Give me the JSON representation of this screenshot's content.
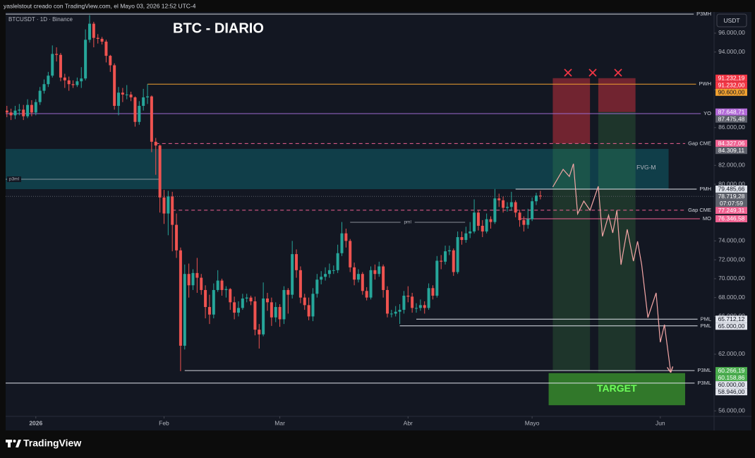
{
  "chart_data": {
    "type": "candlestick",
    "caption": "yaslelstout creado con TradingView.com, el Mayo 03, 2026 12:52 UTC-4",
    "symbol": "BTCUSDT · 1D · Binance",
    "title": "BTC - DIARIO",
    "currency": "USDT",
    "brand": "TradingView",
    "up_color": "#26a69a",
    "down_color": "#ef5350",
    "open": [
      87800,
      87600,
      87300,
      87800,
      87900,
      87200,
      88400,
      87600,
      88700,
      89900,
      90600,
      91500,
      93800,
      93700,
      91300,
      91000,
      90600,
      90500,
      90900,
      91200,
      95300,
      97000,
      95500,
      95400,
      95100,
      93600,
      92600,
      88300,
      89700,
      89500,
      89500,
      89200,
      86600,
      88300,
      89200,
      89300,
      84500,
      84100,
      78600,
      76900,
      78700,
      75700,
      73000,
      62900,
      70500,
      69300,
      70600,
      70100,
      68800,
      67000,
      66200,
      68800,
      69800,
      68800,
      68900,
      67500,
      66400,
      66900,
      67900,
      68000,
      67600,
      64600,
      64100,
      67900,
      67500,
      65900,
      67000,
      65700,
      68800,
      68300,
      72600,
      70900,
      68000,
      67200,
      66000,
      68400,
      69900,
      70200,
      70500,
      70900,
      70900,
      72700,
      74800,
      74000,
      71200,
      69900,
      70500,
      68700,
      68000,
      70900,
      70500,
      71300,
      68800,
      66300,
      66300,
      66500,
      66700,
      68200,
      68100,
      66900,
      66900,
      67200,
      66900,
      69000,
      68200,
      71900,
      71800,
      72900,
      73000,
      70700,
      74400,
      74100,
      74800,
      75000,
      77000,
      75600,
      75000,
      76300,
      76000,
      78500,
      78300,
      77500,
      77600,
      78100,
      77000,
      76200,
      75700,
      76300,
      78200,
      78800
    ],
    "high": [
      88300,
      88000,
      88300,
      88500,
      88400,
      89000,
      88900,
      89000,
      90300,
      91100,
      91900,
      94700,
      94500,
      93900,
      91700,
      91400,
      91000,
      91300,
      92400,
      96400,
      97900,
      97200,
      95900,
      95600,
      95300,
      93700,
      92800,
      90300,
      90200,
      90500,
      89800,
      89300,
      88800,
      90100,
      90600,
      89400,
      84900,
      84200,
      79400,
      79300,
      79200,
      76900,
      73300,
      71500,
      71600,
      71000,
      72200,
      70500,
      69300,
      68300,
      69500,
      70900,
      70000,
      69200,
      69000,
      68100,
      67600,
      68400,
      68400,
      68200,
      68100,
      65200,
      69600,
      68500,
      68000,
      67500,
      67300,
      69200,
      69000,
      74000,
      73100,
      71300,
      68400,
      68000,
      69000,
      70500,
      70800,
      71200,
      71600,
      71400,
      73600,
      76000,
      75300,
      74200,
      71700,
      71000,
      70700,
      69100,
      71300,
      71500,
      71800,
      71500,
      69200,
      66700,
      67100,
      67300,
      68700,
      69200,
      68500,
      67400,
      67800,
      67600,
      69500,
      69300,
      72400,
      72500,
      73500,
      73500,
      73200,
      75000,
      75000,
      75500,
      76000,
      78400,
      77300,
      76200,
      76900,
      76600,
      79500,
      79000,
      78700,
      78100,
      79200,
      78300,
      77300,
      76600,
      77400,
      78600,
      79100,
      79300
    ],
    "low": [
      87100,
      86800,
      86900,
      87300,
      86800,
      87000,
      87200,
      87300,
      88400,
      89600,
      90300,
      91300,
      93000,
      90900,
      90200,
      89900,
      90200,
      90300,
      90200,
      91000,
      95000,
      94500,
      94900,
      94800,
      92900,
      91900,
      87900,
      87300,
      88700,
      89000,
      88800,
      86100,
      86300,
      87800,
      88500,
      83400,
      81000,
      77000,
      75800,
      74600,
      72900,
      72200,
      60200,
      62500,
      68000,
      68800,
      68500,
      68300,
      65800,
      65200,
      65800,
      68600,
      68200,
      68000,
      66700,
      65700,
      66000,
      66700,
      67500,
      67200,
      64000,
      62600,
      63900,
      66600,
      65000,
      65400,
      64900,
      65200,
      66300,
      67900,
      70100,
      67400,
      66700,
      65600,
      65500,
      68000,
      69400,
      69800,
      70100,
      70500,
      70600,
      72400,
      73300,
      70700,
      69300,
      69600,
      68300,
      67700,
      67800,
      69900,
      70200,
      68000,
      65900,
      65900,
      66000,
      65200,
      66300,
      67500,
      66400,
      66400,
      66600,
      66300,
      66700,
      67800,
      68000,
      71000,
      71500,
      72500,
      70300,
      70500,
      73600,
      73800,
      74300,
      74800,
      75100,
      74400,
      74800,
      75300,
      75800,
      77600,
      77000,
      77100,
      77200,
      76500,
      75500,
      75000,
      75300,
      76100,
      77800,
      78400
    ],
    "close": [
      87600,
      87300,
      87800,
      87900,
      87200,
      88400,
      87600,
      88700,
      89900,
      90600,
      91500,
      93800,
      93700,
      91300,
      91000,
      90600,
      90500,
      90900,
      91200,
      95300,
      97000,
      95500,
      95400,
      95100,
      93600,
      92600,
      88300,
      89700,
      89500,
      89500,
      89200,
      86600,
      88300,
      89200,
      89300,
      84500,
      84100,
      78600,
      76900,
      78700,
      75700,
      73000,
      62900,
      70500,
      69300,
      70600,
      70100,
      68800,
      67000,
      66200,
      68800,
      69800,
      68800,
      68900,
      67500,
      66400,
      66900,
      67900,
      68000,
      67600,
      64600,
      64100,
      67900,
      67500,
      65900,
      67000,
      65700,
      68800,
      68300,
      72600,
      70900,
      68000,
      67200,
      66000,
      68400,
      69900,
      70200,
      70500,
      70900,
      70900,
      72700,
      74800,
      74000,
      71200,
      69900,
      70500,
      68700,
      68000,
      70900,
      70500,
      71300,
      68800,
      66300,
      66300,
      66500,
      66700,
      68200,
      68100,
      66900,
      66900,
      67200,
      66900,
      69000,
      68200,
      71900,
      71800,
      72900,
      73000,
      70700,
      74400,
      74100,
      74800,
      75000,
      77000,
      75600,
      75000,
      76300,
      76000,
      78500,
      78300,
      77500,
      77600,
      78100,
      77000,
      76200,
      75700,
      76300,
      78200,
      78800,
      78719.28
    ],
    "xlim": [
      -0.3,
      171
    ],
    "xticks": [
      {
        "value": 7,
        "label": "2026"
      },
      {
        "value": 38,
        "label": "Feb"
      },
      {
        "value": 66,
        "label": "Mar"
      },
      {
        "value": 97,
        "label": "Abr"
      },
      {
        "value": 127,
        "label": "Mayo"
      },
      {
        "value": 158,
        "label": "Jun"
      }
    ],
    "ylim": [
      55420,
      98240
    ],
    "yticks": [
      {
        "value": 96000,
        "label": "96.000,00"
      },
      {
        "value": 94000,
        "label": "94.000,00"
      },
      {
        "value": 90000,
        "label": "90.000,00"
      },
      {
        "value": 86000,
        "label": "86.000,00"
      },
      {
        "value": 82000,
        "label": "82.000,00"
      },
      {
        "value": 80000,
        "label": "80.000,00"
      },
      {
        "value": 74000,
        "label": "74.000,00"
      },
      {
        "value": 72000,
        "label": "72.000,00"
      },
      {
        "value": 70000,
        "label": "70.000,00"
      },
      {
        "value": 68000,
        "label": "68.000,00"
      },
      {
        "value": 66000,
        "label": "66.000,00"
      },
      {
        "value": 62000,
        "label": "62.000,00"
      },
      {
        "value": 56000,
        "label": "56.000,00"
      }
    ],
    "grid": false,
    "current_price": {
      "value": 78719.28,
      "label": "78.719,28",
      "countdown": "07:07:59",
      "color": "#5d606b"
    },
    "fvg": {
      "label": "FVG-M",
      "top": 83740,
      "bottom": 79480,
      "end": 160,
      "color": "#0e6e7a"
    },
    "levels": [
      {
        "label": "P3MH",
        "value": 98020,
        "color": "#d1d4dc"
      },
      {
        "label": "PWH",
        "value": 90600,
        "value_label": "90.600,00",
        "start": 34,
        "color": "#f0a030"
      },
      {
        "label": "YO",
        "value": 87475.48,
        "value_label": "87.475,48",
        "color": "#9c6ad0",
        "tag_color": "#5d606b"
      },
      {
        "label": "Gap CME",
        "value": 84309.11,
        "value_label": "84.309,11",
        "start": 36,
        "dashed": true,
        "color": "#f06292",
        "tag_color": "#5d606b"
      },
      {
        "label": "PMH",
        "value": 79485.66,
        "value_label": "79.485,66",
        "start": 123,
        "color": "#e0e3eb"
      },
      {
        "label": "Gap CME",
        "value": 77249.31,
        "value_label": "77.249,31",
        "start": 40,
        "dashed": true,
        "color": "#f06292"
      },
      {
        "label": "MO",
        "value": 76346.58,
        "value_label": "76.346,58",
        "start": 124,
        "color": "#f06292"
      },
      {
        "label": "PML",
        "value": 65712.12,
        "value_label": "65.712,12",
        "start": 99,
        "color": "#e0e3eb"
      },
      {
        "label": "PML",
        "value": 65000,
        "value_label": "65.000,00",
        "start": 95,
        "color": "#e0e3eb"
      },
      {
        "label": "P3ML",
        "value": 60266.19,
        "start": 43,
        "color": "#d1d4dc"
      },
      {
        "label": "P3ML",
        "value": 58946,
        "value_label": "58.946,00",
        "color": "#e0e3eb"
      }
    ],
    "annotations": [
      {
        "label": "p3ml",
        "value": 80530,
        "end": 37
      },
      {
        "label": "pml",
        "value": 75970,
        "start": 83,
        "end": 110.8
      }
    ],
    "positions": [
      {
        "start": 132,
        "end": 141,
        "stop": 91232.19,
        "stop_label": "91.232,19",
        "entry": 84327.06,
        "entry_label": "84.327,06",
        "entry_color": "#f06292",
        "target": 60266.19,
        "target_label": "60.266,19"
      },
      {
        "start": 143,
        "end": 152,
        "stop": 91232,
        "stop_label": "91.232,00",
        "entry": 87648.71,
        "entry_label": "87.648,71",
        "entry_color": "#b36ad8",
        "target": 60158.86,
        "target_label": "60.158,86"
      }
    ],
    "stop_color": "#f23645",
    "target_color": "#4caf50",
    "target_zone": {
      "label": "TARGET",
      "top": 60000,
      "top_label": "60.000,00",
      "bottom": 56600,
      "start": 131,
      "end": 164,
      "color": "#3c9a2e"
    },
    "forecast": {
      "color": "#f4a6a6",
      "x": [
        132,
        134.5,
        136,
        137,
        138,
        139.5,
        141,
        143,
        144,
        145.5,
        146.5,
        147.5,
        148.5,
        150,
        151.5,
        152.5,
        153.5,
        155,
        157,
        158,
        159,
        160.5
      ],
      "values": [
        79707,
        81575,
        80830,
        82170,
        76870,
        78210,
        77240,
        79780,
        74480,
        76720,
        74850,
        77240,
        71480,
        75220,
        71860,
        73950,
        71480,
        65880,
        68500,
        63270,
        65130,
        60120
      ]
    }
  }
}
